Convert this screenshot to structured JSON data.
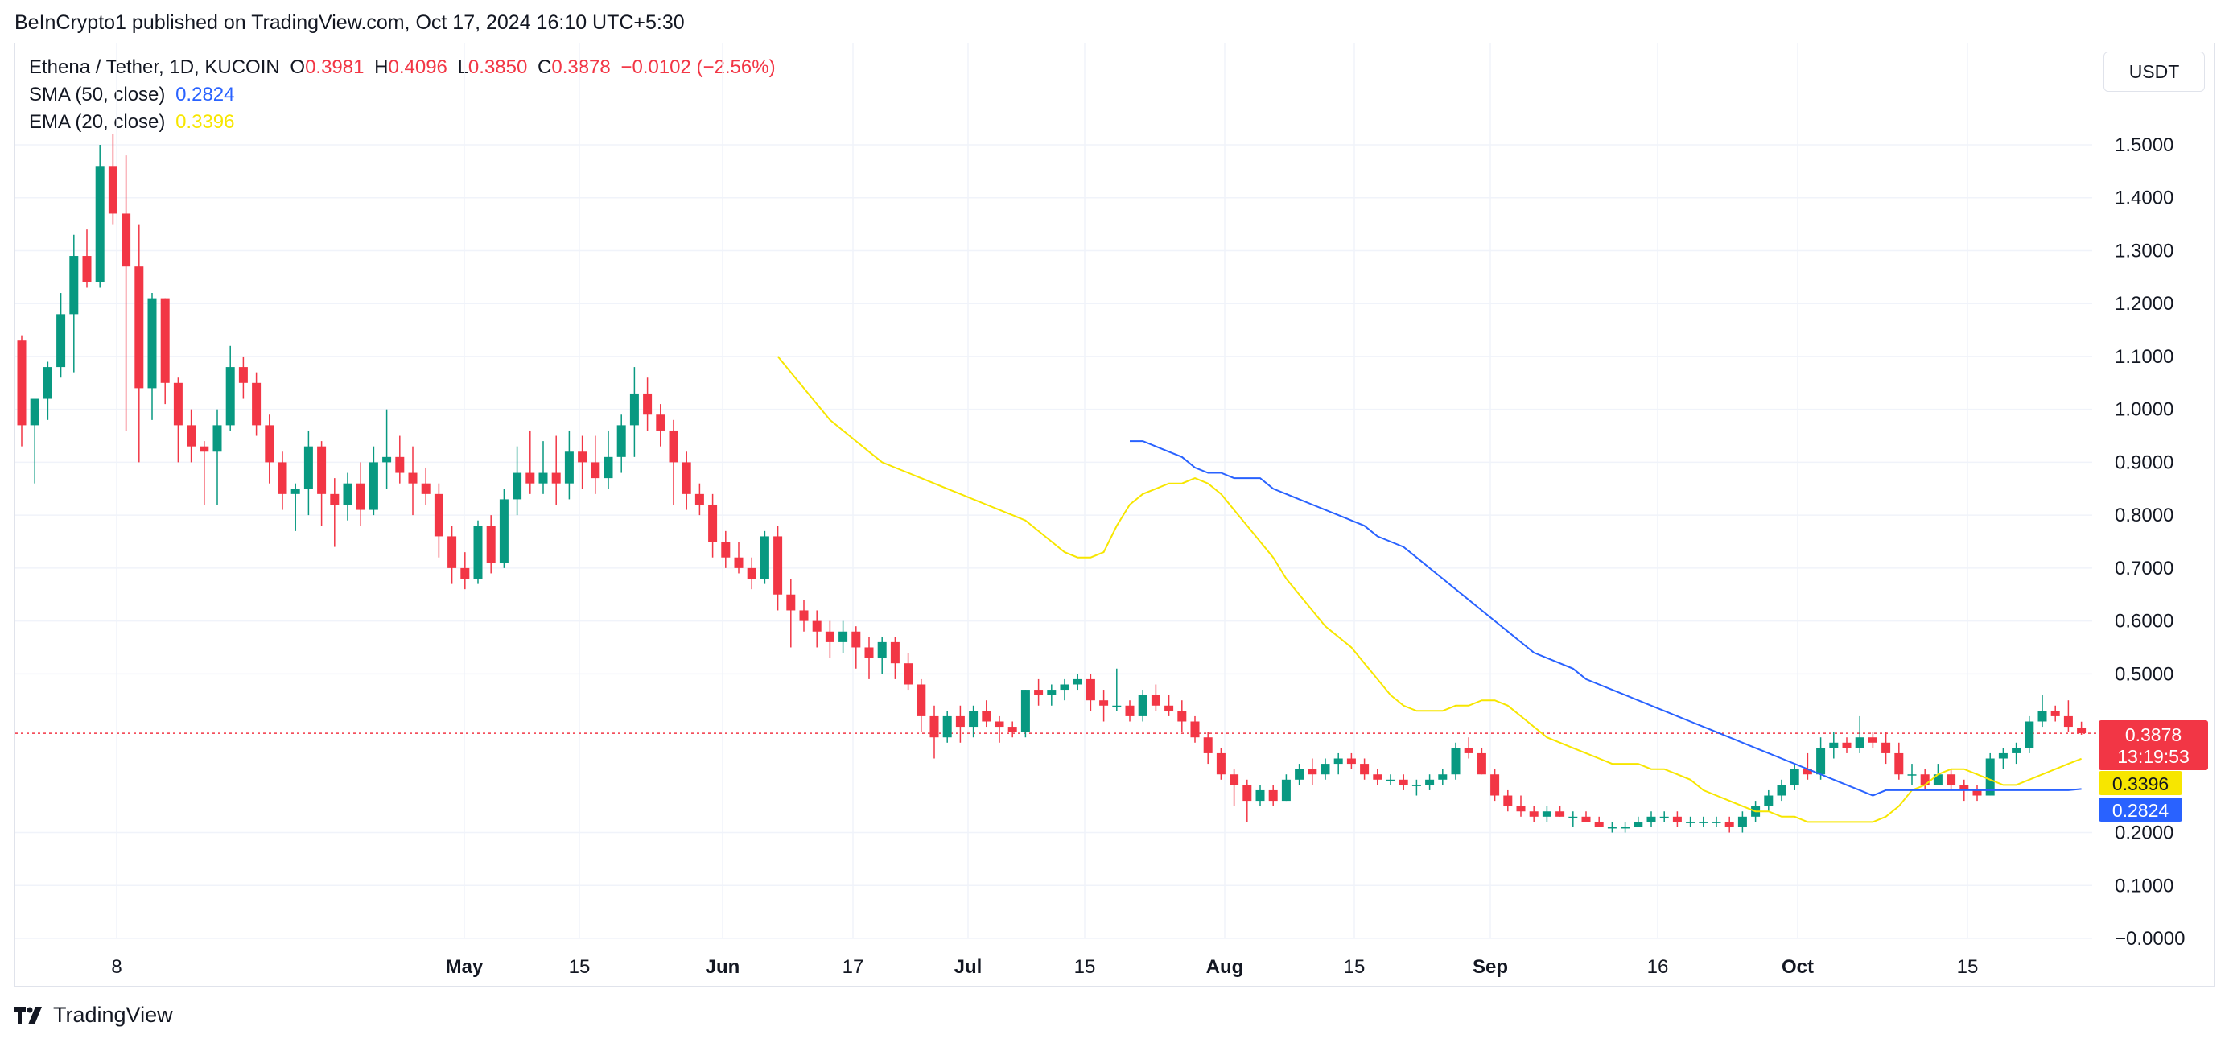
{
  "header": {
    "publish_line": "BeInCrypto1 published on TradingView.com, Oct 17, 2024 16:10 UTC+5:30"
  },
  "legend": {
    "symbol": "Ethena / Tether, 1D, KUCOIN",
    "o_label": "O",
    "o_value": "0.3981",
    "h_label": "H",
    "h_value": "0.4096",
    "l_label": "L",
    "l_value": "0.3850",
    "c_label": "C",
    "c_value": "0.3878",
    "change": "−0.0102 (−2.56%)",
    "sma_label": "SMA (50, close)",
    "sma_value": "0.2824",
    "ema_label": "EMA (20, close)",
    "ema_value": "0.3396"
  },
  "currency": "USDT",
  "footer": {
    "brand": "TradingView"
  },
  "colors": {
    "up": "#089981",
    "down": "#f23645",
    "sma": "#2962ff",
    "ema": "#f7e600",
    "grid": "#f0f3fa"
  },
  "chart_data": {
    "type": "candlestick",
    "ylim": [
      0,
      1.55
    ],
    "y_ticks": [
      "1.5000",
      "1.4000",
      "1.3000",
      "1.2000",
      "1.1000",
      "1.0000",
      "0.9000",
      "0.8000",
      "0.7000",
      "0.6000",
      "0.5000",
      "0.2000",
      "0.1000",
      "−0.0000"
    ],
    "x_labels": [
      "8",
      "May",
      "15",
      "Jun",
      "17",
      "Jul",
      "15",
      "Aug",
      "15",
      "Sep",
      "16",
      "Oct",
      "15"
    ],
    "price_badges": [
      {
        "id": "last",
        "value": "0.3878",
        "countdown": "13:19:53",
        "bg": "#f23645",
        "fg": "#ffffff"
      },
      {
        "id": "ema",
        "value": "0.3396",
        "bg": "#f7e600",
        "fg": "#131722"
      },
      {
        "id": "sma",
        "value": "0.2824",
        "bg": "#2962ff",
        "fg": "#ffffff"
      }
    ],
    "last_price": 0.3878,
    "candles": [
      [
        1.13,
        1.14,
        0.93,
        0.97
      ],
      [
        0.97,
        1.01,
        0.86,
        1.02
      ],
      [
        1.02,
        1.09,
        0.98,
        1.08
      ],
      [
        1.08,
        1.22,
        1.06,
        1.18
      ],
      [
        1.18,
        1.33,
        1.07,
        1.29
      ],
      [
        1.29,
        1.34,
        1.23,
        1.24
      ],
      [
        1.24,
        1.5,
        1.23,
        1.46
      ],
      [
        1.46,
        1.52,
        1.35,
        1.37
      ],
      [
        1.37,
        1.48,
        0.96,
        1.27
      ],
      [
        1.27,
        1.35,
        0.9,
        1.04
      ],
      [
        1.04,
        1.22,
        0.98,
        1.21
      ],
      [
        1.21,
        1.21,
        1.01,
        1.05
      ],
      [
        1.05,
        1.06,
        0.9,
        0.97
      ],
      [
        0.97,
        1.0,
        0.9,
        0.93
      ],
      [
        0.93,
        0.94,
        0.82,
        0.92
      ],
      [
        0.92,
        1.0,
        0.82,
        0.97
      ],
      [
        0.97,
        1.12,
        0.96,
        1.08
      ],
      [
        1.08,
        1.1,
        1.02,
        1.05
      ],
      [
        1.05,
        1.07,
        0.95,
        0.97
      ],
      [
        0.97,
        0.99,
        0.86,
        0.9
      ],
      [
        0.9,
        0.92,
        0.81,
        0.84
      ],
      [
        0.84,
        0.86,
        0.77,
        0.85
      ],
      [
        0.85,
        0.96,
        0.8,
        0.93
      ],
      [
        0.93,
        0.94,
        0.78,
        0.84
      ],
      [
        0.84,
        0.87,
        0.74,
        0.82
      ],
      [
        0.82,
        0.88,
        0.79,
        0.86
      ],
      [
        0.86,
        0.9,
        0.78,
        0.81
      ],
      [
        0.81,
        0.93,
        0.8,
        0.9
      ],
      [
        0.9,
        1.0,
        0.85,
        0.91
      ],
      [
        0.91,
        0.95,
        0.86,
        0.88
      ],
      [
        0.88,
        0.93,
        0.8,
        0.86
      ],
      [
        0.86,
        0.89,
        0.82,
        0.84
      ],
      [
        0.84,
        0.86,
        0.72,
        0.76
      ],
      [
        0.76,
        0.78,
        0.67,
        0.7
      ],
      [
        0.7,
        0.73,
        0.66,
        0.68
      ],
      [
        0.68,
        0.79,
        0.67,
        0.78
      ],
      [
        0.78,
        0.8,
        0.69,
        0.71
      ],
      [
        0.71,
        0.85,
        0.7,
        0.83
      ],
      [
        0.83,
        0.93,
        0.8,
        0.88
      ],
      [
        0.88,
        0.96,
        0.84,
        0.86
      ],
      [
        0.86,
        0.94,
        0.84,
        0.88
      ],
      [
        0.88,
        0.95,
        0.82,
        0.86
      ],
      [
        0.86,
        0.96,
        0.83,
        0.92
      ],
      [
        0.92,
        0.95,
        0.85,
        0.9
      ],
      [
        0.9,
        0.95,
        0.84,
        0.87
      ],
      [
        0.87,
        0.96,
        0.85,
        0.91
      ],
      [
        0.91,
        0.99,
        0.88,
        0.97
      ],
      [
        0.97,
        1.08,
        0.91,
        1.03
      ],
      [
        1.03,
        1.06,
        0.96,
        0.99
      ],
      [
        0.99,
        1.01,
        0.93,
        0.96
      ],
      [
        0.96,
        0.98,
        0.82,
        0.9
      ],
      [
        0.9,
        0.92,
        0.81,
        0.84
      ],
      [
        0.84,
        0.86,
        0.8,
        0.82
      ],
      [
        0.82,
        0.84,
        0.72,
        0.75
      ],
      [
        0.75,
        0.77,
        0.7,
        0.72
      ],
      [
        0.72,
        0.75,
        0.69,
        0.7
      ],
      [
        0.7,
        0.72,
        0.66,
        0.68
      ],
      [
        0.68,
        0.77,
        0.67,
        0.76
      ],
      [
        0.76,
        0.78,
        0.62,
        0.65
      ],
      [
        0.65,
        0.68,
        0.55,
        0.62
      ],
      [
        0.62,
        0.64,
        0.58,
        0.6
      ],
      [
        0.6,
        0.62,
        0.55,
        0.58
      ],
      [
        0.58,
        0.6,
        0.53,
        0.56
      ],
      [
        0.56,
        0.6,
        0.54,
        0.58
      ],
      [
        0.58,
        0.59,
        0.51,
        0.55
      ],
      [
        0.55,
        0.57,
        0.49,
        0.53
      ],
      [
        0.53,
        0.57,
        0.5,
        0.56
      ],
      [
        0.56,
        0.57,
        0.49,
        0.52
      ],
      [
        0.52,
        0.54,
        0.47,
        0.48
      ],
      [
        0.48,
        0.49,
        0.39,
        0.42
      ],
      [
        0.42,
        0.44,
        0.34,
        0.38
      ],
      [
        0.38,
        0.43,
        0.37,
        0.42
      ],
      [
        0.42,
        0.44,
        0.37,
        0.4
      ],
      [
        0.4,
        0.44,
        0.38,
        0.43
      ],
      [
        0.43,
        0.45,
        0.4,
        0.41
      ],
      [
        0.41,
        0.42,
        0.37,
        0.4
      ],
      [
        0.4,
        0.41,
        0.38,
        0.39
      ],
      [
        0.39,
        0.47,
        0.38,
        0.47
      ],
      [
        0.47,
        0.49,
        0.44,
        0.46
      ],
      [
        0.46,
        0.48,
        0.44,
        0.47
      ],
      [
        0.47,
        0.49,
        0.45,
        0.48
      ],
      [
        0.48,
        0.5,
        0.47,
        0.49
      ],
      [
        0.49,
        0.5,
        0.43,
        0.45
      ],
      [
        0.45,
        0.47,
        0.41,
        0.44
      ],
      [
        0.44,
        0.51,
        0.43,
        0.44
      ],
      [
        0.44,
        0.45,
        0.41,
        0.42
      ],
      [
        0.42,
        0.47,
        0.41,
        0.46
      ],
      [
        0.46,
        0.48,
        0.43,
        0.44
      ],
      [
        0.44,
        0.46,
        0.42,
        0.43
      ],
      [
        0.43,
        0.45,
        0.39,
        0.41
      ],
      [
        0.41,
        0.42,
        0.37,
        0.38
      ],
      [
        0.38,
        0.39,
        0.33,
        0.35
      ],
      [
        0.35,
        0.36,
        0.3,
        0.31
      ],
      [
        0.31,
        0.32,
        0.25,
        0.29
      ],
      [
        0.29,
        0.3,
        0.22,
        0.26
      ],
      [
        0.26,
        0.29,
        0.25,
        0.28
      ],
      [
        0.28,
        0.29,
        0.25,
        0.26
      ],
      [
        0.26,
        0.31,
        0.26,
        0.3
      ],
      [
        0.3,
        0.33,
        0.29,
        0.32
      ],
      [
        0.32,
        0.34,
        0.29,
        0.31
      ],
      [
        0.31,
        0.34,
        0.3,
        0.33
      ],
      [
        0.33,
        0.35,
        0.31,
        0.34
      ],
      [
        0.34,
        0.35,
        0.32,
        0.33
      ],
      [
        0.33,
        0.34,
        0.3,
        0.31
      ],
      [
        0.31,
        0.32,
        0.29,
        0.3
      ],
      [
        0.3,
        0.31,
        0.29,
        0.3
      ],
      [
        0.3,
        0.31,
        0.28,
        0.29
      ],
      [
        0.29,
        0.3,
        0.27,
        0.29
      ],
      [
        0.29,
        0.31,
        0.28,
        0.3
      ],
      [
        0.3,
        0.32,
        0.29,
        0.31
      ],
      [
        0.31,
        0.37,
        0.3,
        0.36
      ],
      [
        0.36,
        0.38,
        0.34,
        0.35
      ],
      [
        0.35,
        0.36,
        0.31,
        0.31
      ],
      [
        0.31,
        0.32,
        0.26,
        0.27
      ],
      [
        0.27,
        0.28,
        0.24,
        0.25
      ],
      [
        0.25,
        0.27,
        0.23,
        0.24
      ],
      [
        0.24,
        0.25,
        0.22,
        0.23
      ],
      [
        0.23,
        0.25,
        0.22,
        0.24
      ],
      [
        0.24,
        0.25,
        0.23,
        0.23
      ],
      [
        0.23,
        0.24,
        0.21,
        0.23
      ],
      [
        0.23,
        0.24,
        0.22,
        0.22
      ],
      [
        0.22,
        0.23,
        0.21,
        0.21
      ],
      [
        0.21,
        0.22,
        0.2,
        0.21
      ],
      [
        0.21,
        0.22,
        0.2,
        0.21
      ],
      [
        0.21,
        0.23,
        0.21,
        0.22
      ],
      [
        0.22,
        0.24,
        0.21,
        0.23
      ],
      [
        0.23,
        0.24,
        0.22,
        0.23
      ],
      [
        0.23,
        0.24,
        0.21,
        0.22
      ],
      [
        0.22,
        0.23,
        0.21,
        0.22
      ],
      [
        0.22,
        0.23,
        0.21,
        0.22
      ],
      [
        0.22,
        0.23,
        0.21,
        0.22
      ],
      [
        0.22,
        0.23,
        0.2,
        0.21
      ],
      [
        0.21,
        0.24,
        0.2,
        0.23
      ],
      [
        0.23,
        0.26,
        0.22,
        0.25
      ],
      [
        0.25,
        0.28,
        0.24,
        0.27
      ],
      [
        0.27,
        0.3,
        0.26,
        0.29
      ],
      [
        0.29,
        0.33,
        0.28,
        0.32
      ],
      [
        0.32,
        0.35,
        0.3,
        0.31
      ],
      [
        0.31,
        0.38,
        0.3,
        0.36
      ],
      [
        0.36,
        0.39,
        0.34,
        0.37
      ],
      [
        0.37,
        0.38,
        0.35,
        0.36
      ],
      [
        0.36,
        0.42,
        0.35,
        0.38
      ],
      [
        0.38,
        0.39,
        0.36,
        0.37
      ],
      [
        0.37,
        0.39,
        0.33,
        0.35
      ],
      [
        0.35,
        0.37,
        0.3,
        0.31
      ],
      [
        0.31,
        0.33,
        0.29,
        0.31
      ],
      [
        0.31,
        0.32,
        0.28,
        0.29
      ],
      [
        0.29,
        0.33,
        0.29,
        0.31
      ],
      [
        0.31,
        0.32,
        0.28,
        0.29
      ],
      [
        0.29,
        0.3,
        0.26,
        0.28
      ],
      [
        0.28,
        0.29,
        0.26,
        0.27
      ],
      [
        0.27,
        0.35,
        0.27,
        0.34
      ],
      [
        0.34,
        0.36,
        0.32,
        0.35
      ],
      [
        0.35,
        0.37,
        0.33,
        0.36
      ],
      [
        0.36,
        0.42,
        0.35,
        0.41
      ],
      [
        0.41,
        0.46,
        0.4,
        0.43
      ],
      [
        0.43,
        0.44,
        0.41,
        0.42
      ],
      [
        0.42,
        0.45,
        0.39,
        0.4
      ],
      [
        0.3981,
        0.4096,
        0.385,
        0.3878
      ]
    ],
    "sma": [
      0.94,
      0.94,
      0.93,
      0.92,
      0.91,
      0.89,
      0.88,
      0.88,
      0.87,
      0.87,
      0.87,
      0.85,
      0.84,
      0.83,
      0.82,
      0.81,
      0.8,
      0.79,
      0.78,
      0.76,
      0.75,
      0.74,
      0.72,
      0.7,
      0.68,
      0.66,
      0.64,
      0.62,
      0.6,
      0.58,
      0.56,
      0.54,
      0.53,
      0.52,
      0.51,
      0.49,
      0.48,
      0.47,
      0.46,
      0.45,
      0.44,
      0.43,
      0.42,
      0.41,
      0.4,
      0.39,
      0.38,
      0.37,
      0.36,
      0.35,
      0.34,
      0.33,
      0.32,
      0.31,
      0.3,
      0.29,
      0.28,
      0.27,
      0.28,
      0.28,
      0.28,
      0.28,
      0.28,
      0.28,
      0.28,
      0.28,
      0.28,
      0.28,
      0.28,
      0.28,
      0.28,
      0.28,
      0.28,
      0.2824
    ],
    "ema": [
      1.1,
      1.07,
      1.04,
      1.01,
      0.98,
      0.96,
      0.94,
      0.92,
      0.9,
      0.89,
      0.88,
      0.87,
      0.86,
      0.85,
      0.84,
      0.83,
      0.82,
      0.81,
      0.8,
      0.79,
      0.77,
      0.75,
      0.73,
      0.72,
      0.72,
      0.73,
      0.78,
      0.82,
      0.84,
      0.85,
      0.86,
      0.86,
      0.87,
      0.86,
      0.84,
      0.81,
      0.78,
      0.75,
      0.72,
      0.68,
      0.65,
      0.62,
      0.59,
      0.57,
      0.55,
      0.52,
      0.49,
      0.46,
      0.44,
      0.43,
      0.43,
      0.43,
      0.44,
      0.44,
      0.45,
      0.45,
      0.44,
      0.42,
      0.4,
      0.38,
      0.37,
      0.36,
      0.35,
      0.34,
      0.33,
      0.33,
      0.33,
      0.32,
      0.32,
      0.31,
      0.3,
      0.28,
      0.27,
      0.26,
      0.25,
      0.24,
      0.24,
      0.23,
      0.23,
      0.22,
      0.22,
      0.22,
      0.22,
      0.22,
      0.22,
      0.23,
      0.25,
      0.28,
      0.29,
      0.31,
      0.32,
      0.32,
      0.31,
      0.3,
      0.29,
      0.29,
      0.3,
      0.31,
      0.32,
      0.33,
      0.3396
    ]
  }
}
